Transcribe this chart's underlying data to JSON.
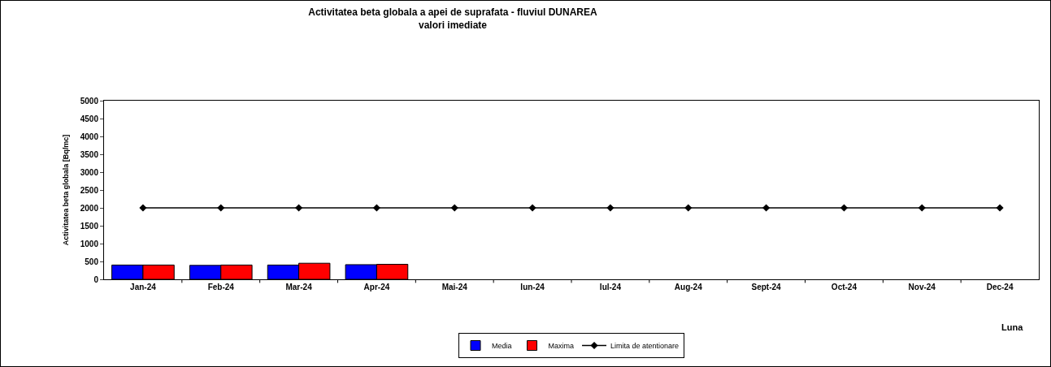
{
  "chart_data": {
    "type": "bar",
    "title": "Activitatea beta globala a apei de suprafata - fluviul DUNAREA",
    "subtitle": "valori imediate",
    "xlabel": "Luna",
    "ylabel": "Activitatea beta globala [Bq/mc]",
    "categories": [
      "Jan-24",
      "Feb-24",
      "Mar-24",
      "Apr-24",
      "Mai-24",
      "Iun-24",
      "Iul-24",
      "Aug-24",
      "Sept-24",
      "Oct-24",
      "Nov-24",
      "Dec-24"
    ],
    "series": [
      {
        "name": "Media",
        "color": "#0000ff",
        "values": [
          400,
          390,
          400,
          410,
          null,
          null,
          null,
          null,
          null,
          null,
          null,
          null
        ]
      },
      {
        "name": "Maxima",
        "color": "#ff0000",
        "values": [
          400,
          400,
          450,
          420,
          null,
          null,
          null,
          null,
          null,
          null,
          null,
          null
        ]
      },
      {
        "name": "Limita de atentionare",
        "type": "line",
        "color": "#000000",
        "marker": "diamond",
        "values": [
          2000,
          2000,
          2000,
          2000,
          2000,
          2000,
          2000,
          2000,
          2000,
          2000,
          2000,
          2000
        ]
      }
    ],
    "ylim": [
      0,
      5000
    ],
    "yticks": [
      0,
      500,
      1000,
      1500,
      2000,
      2500,
      3000,
      3500,
      4000,
      4500,
      5000
    ],
    "grid": false,
    "legend": "bottom"
  }
}
